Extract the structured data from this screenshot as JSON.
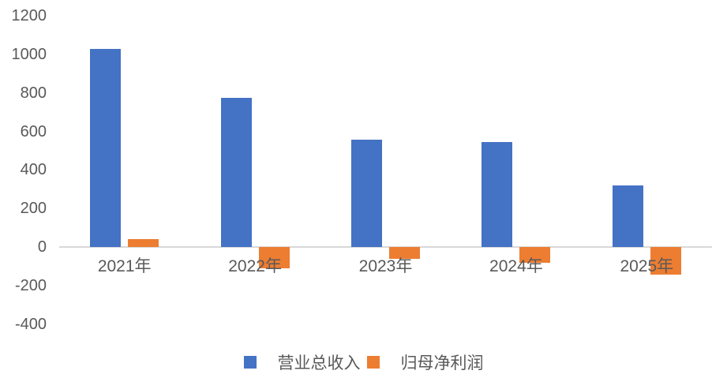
{
  "chart_data": {
    "type": "bar",
    "title": "",
    "xlabel": "",
    "ylabel": "",
    "categories": [
      "2021年",
      "2022年",
      "2023年",
      "2024年",
      "2025年"
    ],
    "series": [
      {
        "name": "营业总收入",
        "color": "#4472c4",
        "values": [
          1030,
          775,
          557,
          545,
          318
        ]
      },
      {
        "name": "归母净利润",
        "color": "#ed7d31",
        "values": [
          40,
          -110,
          -62,
          -82,
          -144
        ]
      }
    ],
    "y_ticks": [
      1200,
      1000,
      800,
      600,
      400,
      200,
      0,
      -200,
      -400
    ],
    "ylim": [
      -400,
      1200
    ],
    "grid": false,
    "legend_position": "bottom",
    "axis_line_color": "#d9d9d9",
    "tick_label_color": "#595959"
  }
}
